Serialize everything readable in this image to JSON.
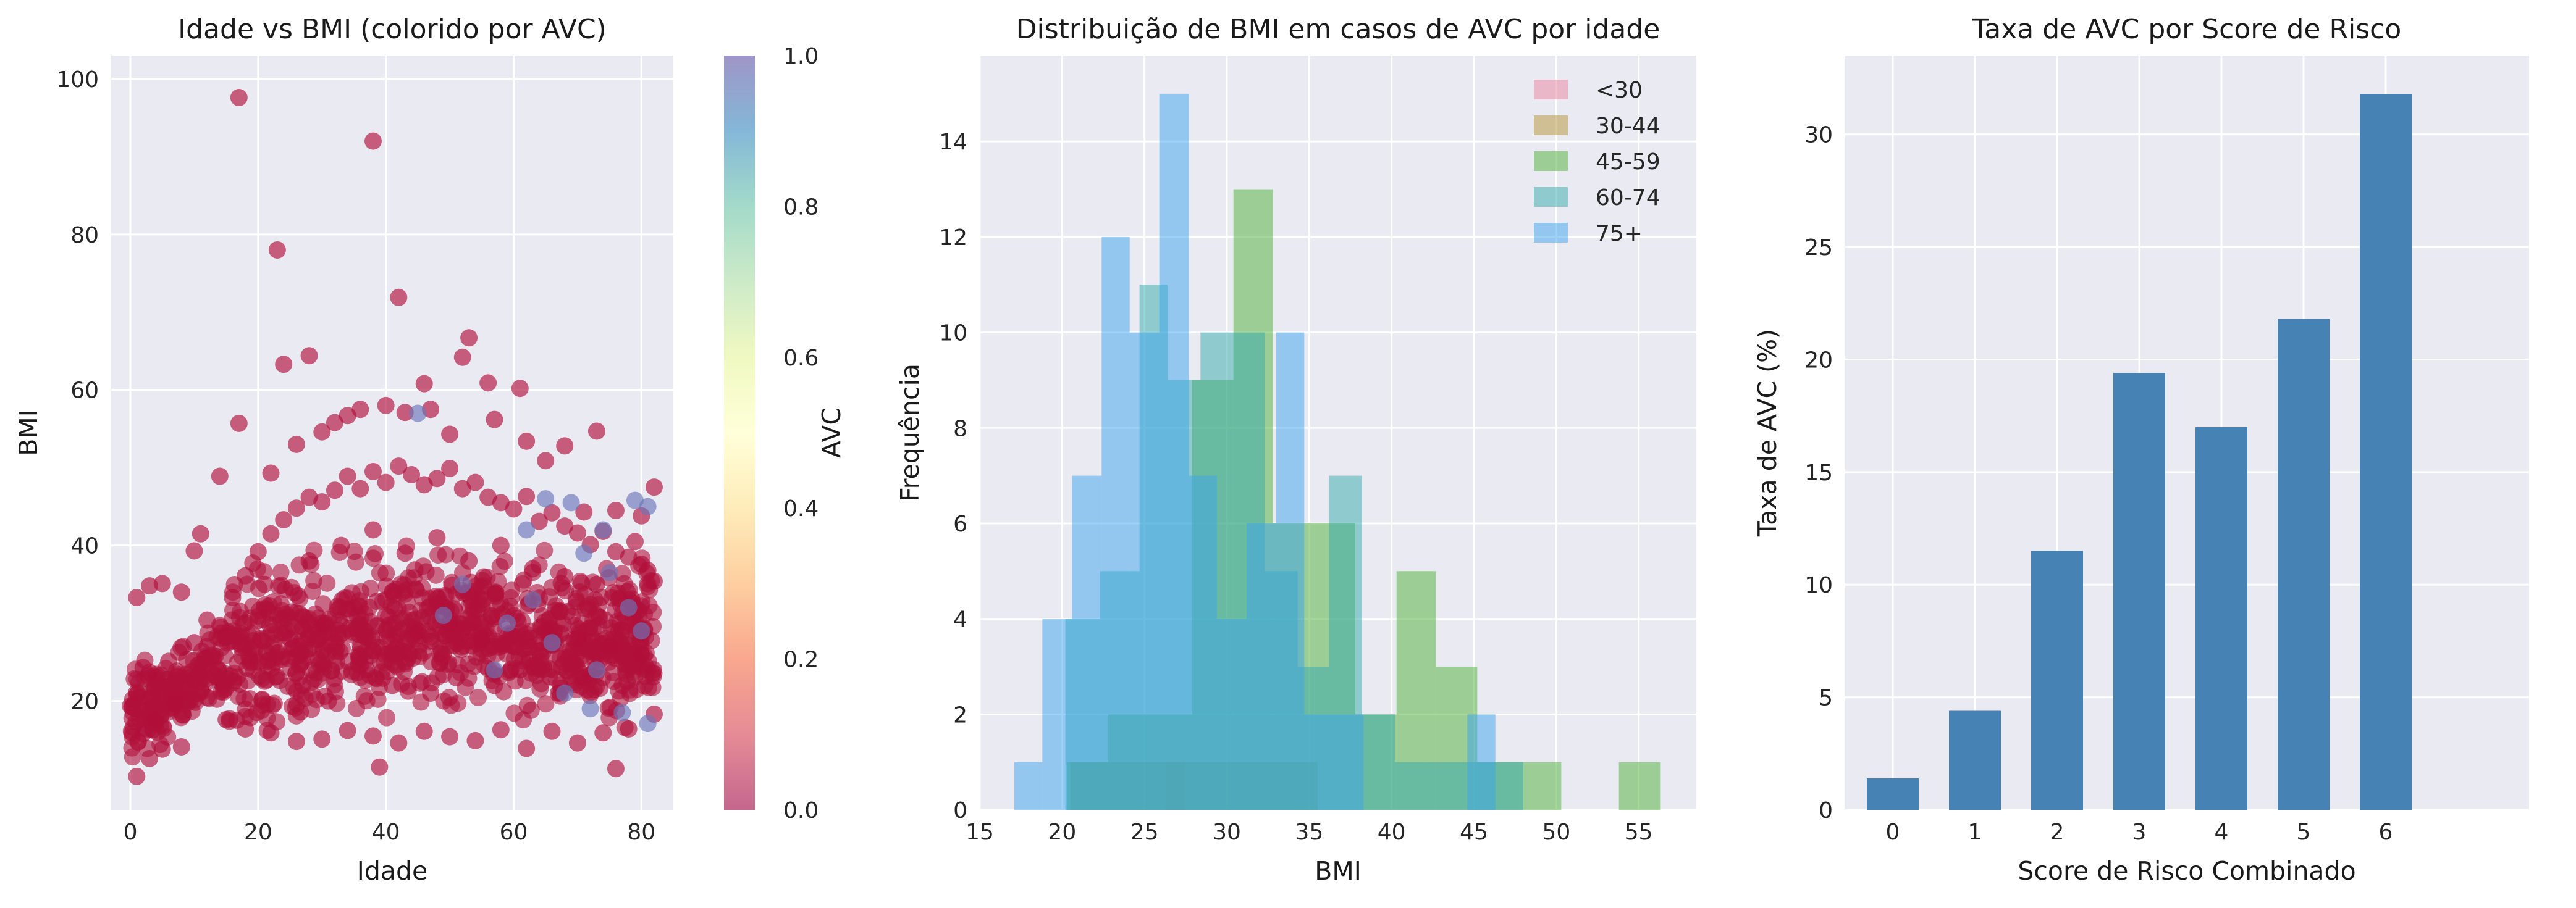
{
  "chart_data": [
    {
      "type": "scatter",
      "title": "Idade vs BMI (colorido por AVC)",
      "xlabel": "Idade",
      "ylabel": "BMI",
      "xlim": [
        -3,
        85
      ],
      "ylim": [
        6,
        103
      ],
      "xticks": [
        0,
        20,
        40,
        60,
        80
      ],
      "yticks": [
        20,
        40,
        60,
        80,
        100
      ],
      "grid": true,
      "colormap": "Spectral",
      "colorbar": {
        "label": "AVC",
        "ticks": [
          "0.0",
          "0.2",
          "0.4",
          "0.6",
          "0.8",
          "1.0"
        ],
        "colors": [
          "#9e0142",
          "#d53e4f",
          "#f46d43",
          "#fdae61",
          "#fee08b",
          "#ffffbf",
          "#e6f598",
          "#abdda4",
          "#66c2a5",
          "#3288bd",
          "#5e4fa2"
        ]
      },
      "marker_color_no_stroke": "#b0103a",
      "marker_color_stroke": "#6b74b8",
      "series": [
        {
          "stroke": 0,
          "points": [
            [
              17,
              97.6
            ],
            [
              38,
              92
            ],
            [
              23,
              78
            ],
            [
              42,
              71.9
            ],
            [
              28,
              64.4
            ],
            [
              24,
              63.3
            ],
            [
              53,
              66.7
            ],
            [
              52,
              64.2
            ],
            [
              17,
              55.7
            ],
            [
              46,
              60.8
            ],
            [
              61,
              60.2
            ],
            [
              56,
              60.9
            ],
            [
              68,
              52.8
            ],
            [
              73,
              54.7
            ],
            [
              14,
              48.9
            ],
            [
              34,
              56.7
            ],
            [
              40,
              58
            ],
            [
              47,
              57.5
            ],
            [
              43,
              57.1
            ],
            [
              36,
              57.5
            ],
            [
              32,
              55.8
            ],
            [
              50,
              54.3
            ],
            [
              57,
              56.2
            ],
            [
              30,
              54.6
            ],
            [
              26,
              53
            ],
            [
              22,
              49.3
            ],
            [
              62,
              53.4
            ],
            [
              65,
              50.9
            ],
            [
              3,
              34.8
            ],
            [
              5,
              35.1
            ],
            [
              8,
              34
            ],
            [
              1,
              33.3
            ],
            [
              11,
              41.5
            ],
            [
              10,
              39.3
            ],
            [
              71,
              44.3
            ],
            [
              76,
              44.5
            ],
            [
              80,
              43.8
            ],
            [
              82,
              47.5
            ],
            [
              79,
              40.5
            ],
            [
              81,
              36.8
            ],
            [
              39,
              11.5
            ],
            [
              76,
              11.3
            ],
            [
              1,
              10.3
            ],
            [
              3,
              12.6
            ],
            [
              5,
              13.8
            ],
            [
              8,
              14.1
            ],
            [
              2,
              15.8
            ],
            [
              4,
              17.5
            ],
            [
              7,
              19.6
            ],
            [
              1,
              21.1
            ],
            [
              3,
              23.7
            ],
            [
              6,
              25.1
            ],
            [
              2,
              24.3
            ],
            [
              10,
              27.5
            ],
            [
              12,
              30.4
            ],
            [
              14,
              29.7
            ],
            [
              16,
              33.3
            ],
            [
              18,
              36.1
            ],
            [
              20,
              39.2
            ],
            [
              22,
              41.5
            ],
            [
              24,
              43.3
            ],
            [
              26,
              44.8
            ],
            [
              28,
              46.2
            ],
            [
              30,
              45.6
            ],
            [
              32,
              47.1
            ],
            [
              34,
              48.9
            ],
            [
              36,
              47.3
            ],
            [
              38,
              49.5
            ],
            [
              40,
              48.1
            ],
            [
              42,
              50.2
            ],
            [
              44,
              49.1
            ],
            [
              46,
              47.8
            ],
            [
              48,
              48.6
            ],
            [
              50,
              49.9
            ],
            [
              52,
              47.3
            ],
            [
              54,
              48.1
            ],
            [
              56,
              46.2
            ],
            [
              58,
              45.5
            ],
            [
              60,
              44.7
            ],
            [
              62,
              46.3
            ],
            [
              64,
              43.1
            ],
            [
              66,
              44.2
            ],
            [
              68,
              42.5
            ],
            [
              70,
              41.6
            ],
            [
              72,
              40.1
            ],
            [
              74,
              41.8
            ],
            [
              76,
              39.2
            ],
            [
              78,
              38.5
            ],
            [
              80,
              37.6
            ],
            [
              82,
              35.4
            ],
            [
              15,
              17.6
            ],
            [
              18,
              16.4
            ],
            [
              22,
              15.9
            ],
            [
              26,
              14.8
            ],
            [
              30,
              15.1
            ],
            [
              34,
              16.2
            ],
            [
              38,
              15.5
            ],
            [
              42,
              14.6
            ],
            [
              46,
              16.1
            ],
            [
              50,
              15.4
            ],
            [
              54,
              14.9
            ],
            [
              58,
              16.3
            ],
            [
              62,
              13.9
            ],
            [
              66,
              16.1
            ],
            [
              70,
              14.6
            ],
            [
              74,
              15.9
            ],
            [
              78,
              16.4
            ],
            [
              82,
              18.3
            ],
            [
              20,
              25
            ],
            [
              25,
              28
            ],
            [
              30,
              30
            ],
            [
              35,
              32
            ],
            [
              40,
              31
            ],
            [
              45,
              29
            ],
            [
              50,
              30
            ],
            [
              55,
              28
            ],
            [
              60,
              31
            ],
            [
              65,
              29
            ],
            [
              70,
              28
            ],
            [
              75,
              27
            ],
            [
              80,
              26
            ],
            [
              28,
              38
            ],
            [
              33,
              40
            ],
            [
              38,
              42
            ],
            [
              43,
              39
            ],
            [
              48,
              41
            ],
            [
              53,
              38
            ],
            [
              58,
              40
            ],
            [
              63,
              37
            ],
            [
              68,
              36
            ],
            [
              73,
              35
            ],
            [
              78,
              33
            ],
            [
              21,
              35
            ],
            [
              27,
              22
            ],
            [
              31,
              20
            ],
            [
              37,
              24
            ],
            [
              41,
              22
            ],
            [
              47,
              21
            ],
            [
              51,
              23
            ],
            [
              57,
              22
            ],
            [
              61,
              24
            ],
            [
              67,
              21
            ],
            [
              71,
              23
            ],
            [
              77,
              22
            ],
            [
              81,
              24
            ]
          ]
        },
        {
          "stroke": 1,
          "points": [
            [
              45,
              57
            ],
            [
              65,
              46
            ],
            [
              69,
              45.5
            ],
            [
              79,
              45.8
            ],
            [
              81,
              45
            ],
            [
              62,
              42
            ],
            [
              71,
              39
            ],
            [
              75,
              36.5
            ],
            [
              78,
              32
            ],
            [
              80,
              29
            ],
            [
              66,
              27.5
            ],
            [
              73,
              24
            ],
            [
              59,
              30
            ],
            [
              63,
              33
            ],
            [
              68,
              21
            ],
            [
              72,
              19
            ],
            [
              77,
              18.5
            ],
            [
              81,
              17.1
            ],
            [
              57,
              24
            ],
            [
              52,
              35
            ],
            [
              49,
              31
            ],
            [
              74,
              42
            ]
          ]
        }
      ]
    },
    {
      "type": "bar",
      "title": "Distribuição de BMI em casos de AVC por idade",
      "xlabel": "BMI",
      "ylabel": "Frequência",
      "xlim": [
        15,
        58.5
      ],
      "ylim": [
        0,
        15.8
      ],
      "xticks": [
        15,
        20,
        25,
        30,
        35,
        40,
        45,
        50,
        55
      ],
      "yticks": [
        0,
        2,
        4,
        6,
        8,
        10,
        12,
        14
      ],
      "grid": true,
      "legend_position": "top-right",
      "opacity": 0.5,
      "series": [
        {
          "name": "<30",
          "color": "#e8849c",
          "bins": [
            [
              26.3,
              27.5,
              1
            ]
          ]
        },
        {
          "name": "30-44",
          "color": "#b59332",
          "bins": [
            [
              20.5,
              23.2,
              1
            ],
            [
              23.2,
              25.5,
              1
            ],
            [
              25.5,
              28,
              1
            ],
            [
              28,
              30.5,
              1
            ],
            [
              30.5,
              33.2,
              1
            ],
            [
              33.2,
              35.5,
              1
            ]
          ]
        },
        {
          "name": "45-59",
          "color": "#4eaf36",
          "bins": [
            [
              20.3,
              22.8,
              1
            ],
            [
              22.8,
              25.2,
              2
            ],
            [
              25.2,
              27.9,
              2
            ],
            [
              27.9,
              30.4,
              9
            ],
            [
              30.4,
              32.8,
              13
            ],
            [
              32.8,
              35.3,
              6
            ],
            [
              35.3,
              37.8,
              6
            ],
            [
              37.8,
              40.3,
              2
            ],
            [
              40.3,
              42.7,
              5
            ],
            [
              42.7,
              45.2,
              3
            ],
            [
              45.2,
              47.8,
              1
            ],
            [
              47.8,
              50.3,
              1
            ],
            [
              53.8,
              56.3,
              1
            ]
          ]
        },
        {
          "name": "60-74",
          "color": "#33a9ac",
          "bins": [
            [
              20.2,
              22.3,
              4
            ],
            [
              22.3,
              24.7,
              5
            ],
            [
              24.7,
              26.4,
              11
            ],
            [
              26.4,
              28.4,
              9
            ],
            [
              28.4,
              30.4,
              10
            ],
            [
              30.4,
              32.3,
              10
            ],
            [
              32.3,
              34.3,
              5
            ],
            [
              34.3,
              36.2,
              3
            ],
            [
              36.2,
              38.2,
              7
            ],
            [
              38.2,
              40.2,
              2
            ],
            [
              40.2,
              42.2,
              1
            ],
            [
              42.2,
              44.1,
              1
            ],
            [
              44.1,
              46.1,
              1
            ],
            [
              46.1,
              48,
              1
            ]
          ]
        },
        {
          "name": "75+",
          "color": "#3ba3ec",
          "bins": [
            [
              17.1,
              18.8,
              1
            ],
            [
              18.8,
              20.6,
              4
            ],
            [
              20.6,
              22.4,
              7
            ],
            [
              22.4,
              24.1,
              12
            ],
            [
              24.1,
              25.9,
              10
            ],
            [
              25.9,
              27.7,
              15
            ],
            [
              27.7,
              29.4,
              7
            ],
            [
              29.4,
              31.2,
              4
            ],
            [
              31.2,
              33,
              6
            ],
            [
              33,
              34.7,
              10
            ],
            [
              34.7,
              36.5,
              2
            ],
            [
              36.5,
              38.3,
              2
            ],
            [
              44.6,
              46.3,
              2
            ]
          ]
        }
      ]
    },
    {
      "type": "bar",
      "title": "Taxa de AVC por Score de Risco",
      "xlabel": "Score de Risco Combinado",
      "ylabel": "Taxa de AVC (%)",
      "categories": [
        "0",
        "1",
        "2",
        "3",
        "4",
        "5",
        "6"
      ],
      "values": [
        1.4,
        4.4,
        11.5,
        19.4,
        17.0,
        21.8,
        31.8
      ],
      "ylim": [
        0,
        33.5
      ],
      "yticks": [
        0,
        5,
        10,
        15,
        20,
        25,
        30
      ],
      "grid": true,
      "color": "#4682b4"
    }
  ]
}
